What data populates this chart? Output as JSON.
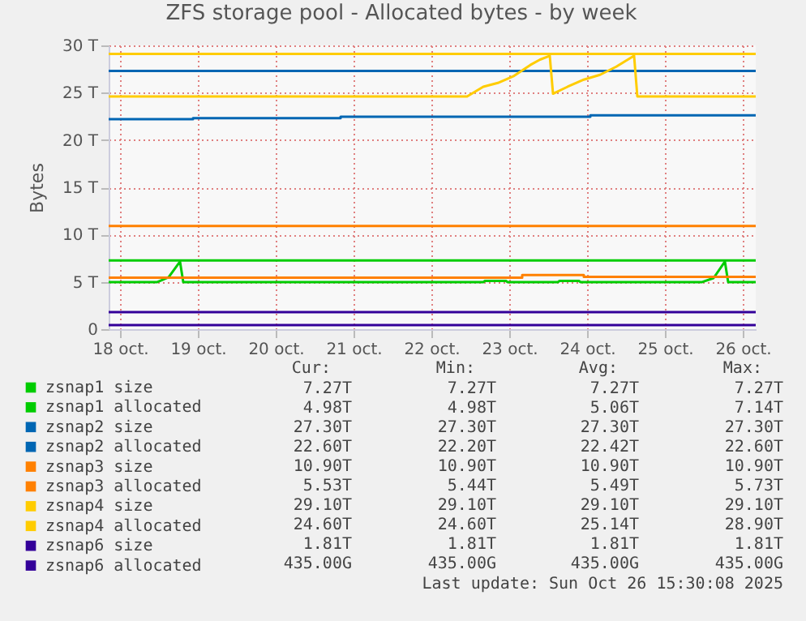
{
  "chart_data": {
    "type": "line",
    "title": "ZFS storage pool - Allocated bytes - by week",
    "ylabel": "Bytes",
    "xlim": [
      "2025-10-18T08:30",
      "2025-10-26T16:00"
    ],
    "xticks": [
      {
        "value": "2025-10-18T12:00",
        "label": "18 oct."
      },
      {
        "value": "2025-10-19T12:00",
        "label": "19 oct."
      },
      {
        "value": "2025-10-20T12:00",
        "label": "20 oct."
      },
      {
        "value": "2025-10-21T12:00",
        "label": "21 oct."
      },
      {
        "value": "2025-10-22T12:00",
        "label": "22 oct."
      },
      {
        "value": "2025-10-23T12:00",
        "label": "23 oct."
      },
      {
        "value": "2025-10-24T12:00",
        "label": "24 oct."
      },
      {
        "value": "2025-10-25T12:00",
        "label": "25 oct."
      },
      {
        "value": "2025-10-26T12:00",
        "label": "26 oct."
      }
    ],
    "ylim": [
      0,
      30
    ],
    "yticks": [
      {
        "value": 0,
        "label": "0"
      },
      {
        "value": 5,
        "label": "5 T"
      },
      {
        "value": 10,
        "label": "10 T"
      },
      {
        "value": 15,
        "label": "15 T"
      },
      {
        "value": 20,
        "label": "20 T"
      },
      {
        "value": 25,
        "label": "25 T"
      },
      {
        "value": 30,
        "label": "30 T"
      }
    ],
    "grid": true,
    "legend": "bottom",
    "series": [
      {
        "name": "zsnap1 size",
        "color": "#00cc00",
        "x": [
          "2025-10-18T08:30",
          "2025-10-26T16:00"
        ],
        "values": [
          7.27,
          7.27
        ]
      },
      {
        "name": "zsnap1 allocated",
        "color": "#00cc00",
        "x": [
          "2025-10-18T08:30",
          "2025-10-18T23:30",
          "2025-10-19T01:00",
          "2025-10-19T03:00",
          "2025-10-19T06:30",
          "2025-10-19T07:30",
          "2025-10-23T04:00",
          "2025-10-23T04:30",
          "2025-10-23T11:00",
          "2025-10-23T11:30",
          "2025-10-24T03:00",
          "2025-10-24T03:30",
          "2025-10-24T09:30",
          "2025-10-24T10:00",
          "2025-10-25T23:30",
          "2025-10-26T03:00",
          "2025-10-26T06:30",
          "2025-10-26T07:30",
          "2025-10-26T16:00"
        ],
        "values": [
          4.98,
          4.98,
          5.2,
          5.5,
          7.14,
          4.98,
          4.98,
          5.1,
          5.1,
          4.98,
          4.98,
          5.1,
          5.1,
          4.98,
          4.98,
          5.4,
          7.14,
          4.98,
          4.98
        ]
      },
      {
        "name": "zsnap2 size",
        "color": "#0066b3",
        "x": [
          "2025-10-18T08:30",
          "2025-10-26T16:00"
        ],
        "values": [
          27.3,
          27.3
        ]
      },
      {
        "name": "zsnap2 allocated",
        "color": "#0066b3",
        "x": [
          "2025-10-18T08:30",
          "2025-10-19T10:30",
          "2025-10-19T10:30",
          "2025-10-21T08:00",
          "2025-10-21T08:00",
          "2025-10-24T13:00",
          "2025-10-24T13:00",
          "2025-10-26T16:00"
        ],
        "values": [
          22.2,
          22.2,
          22.3,
          22.3,
          22.45,
          22.45,
          22.6,
          22.6
        ]
      },
      {
        "name": "zsnap3 size",
        "color": "#ff8000",
        "x": [
          "2025-10-18T08:30",
          "2025-10-26T16:00"
        ],
        "values": [
          10.9,
          10.9
        ]
      },
      {
        "name": "zsnap3 allocated",
        "color": "#ff8000",
        "x": [
          "2025-10-18T08:30",
          "2025-10-23T16:00",
          "2025-10-23T16:00",
          "2025-10-24T11:00",
          "2025-10-24T11:00",
          "2025-10-26T16:00"
        ],
        "values": [
          5.44,
          5.44,
          5.73,
          5.73,
          5.53,
          5.53
        ]
      },
      {
        "name": "zsnap4 size",
        "color": "#ffcc00",
        "x": [
          "2025-10-18T08:30",
          "2025-10-26T16:00"
        ],
        "values": [
          29.1,
          29.1
        ]
      },
      {
        "name": "zsnap4 allocated",
        "color": "#ffcc00",
        "x": [
          "2025-10-18T08:30",
          "2025-10-22T23:00",
          "2025-10-23T04:00",
          "2025-10-23T08:30",
          "2025-10-23T13:30",
          "2025-10-23T18:30",
          "2025-10-23T21:30",
          "2025-10-24T00:30",
          "2025-10-24T01:30",
          "2025-10-24T06:00",
          "2025-10-24T11:00",
          "2025-10-24T16:00",
          "2025-10-24T21:00",
          "2025-10-25T02:30",
          "2025-10-25T03:30",
          "2025-10-26T16:00"
        ],
        "values": [
          24.6,
          24.6,
          25.63,
          26.03,
          26.78,
          27.93,
          28.5,
          28.9,
          24.89,
          25.63,
          26.38,
          26.89,
          27.75,
          28.9,
          24.6,
          24.6
        ]
      },
      {
        "name": "zsnap6 size",
        "color": "#330099",
        "x": [
          "2025-10-18T08:30",
          "2025-10-26T16:00"
        ],
        "values": [
          1.81,
          1.81
        ]
      },
      {
        "name": "zsnap6 allocated",
        "color": "#330099",
        "x": [
          "2025-10-18T08:30",
          "2025-10-26T16:00"
        ],
        "values": [
          0.435,
          0.435
        ]
      }
    ],
    "annotations": [
      "Cur:",
      "Min:",
      "Avg:",
      "Max:",
      "7.27T",
      "7.27T",
      "7.27T",
      "7.27T",
      "4.98T",
      "4.98T",
      "5.06T",
      "7.14T",
      "27.30T",
      "27.30T",
      "27.30T",
      "27.30T",
      "22.60T",
      "22.20T",
      "22.42T",
      "22.60T",
      "10.90T",
      "10.90T",
      "10.90T",
      "10.90T",
      "5.53T",
      "5.44T",
      "5.49T",
      "5.73T",
      "29.10T",
      "29.10T",
      "29.10T",
      "29.10T",
      "24.60T",
      "24.60T",
      "25.14T",
      "28.90T",
      "1.81T",
      "1.81T",
      "1.81T",
      "1.81T",
      "435.00G",
      "435.00G",
      "435.00G",
      "435.00G",
      "Last update: Sun Oct 26 15:30:08 2025"
    ]
  }
}
